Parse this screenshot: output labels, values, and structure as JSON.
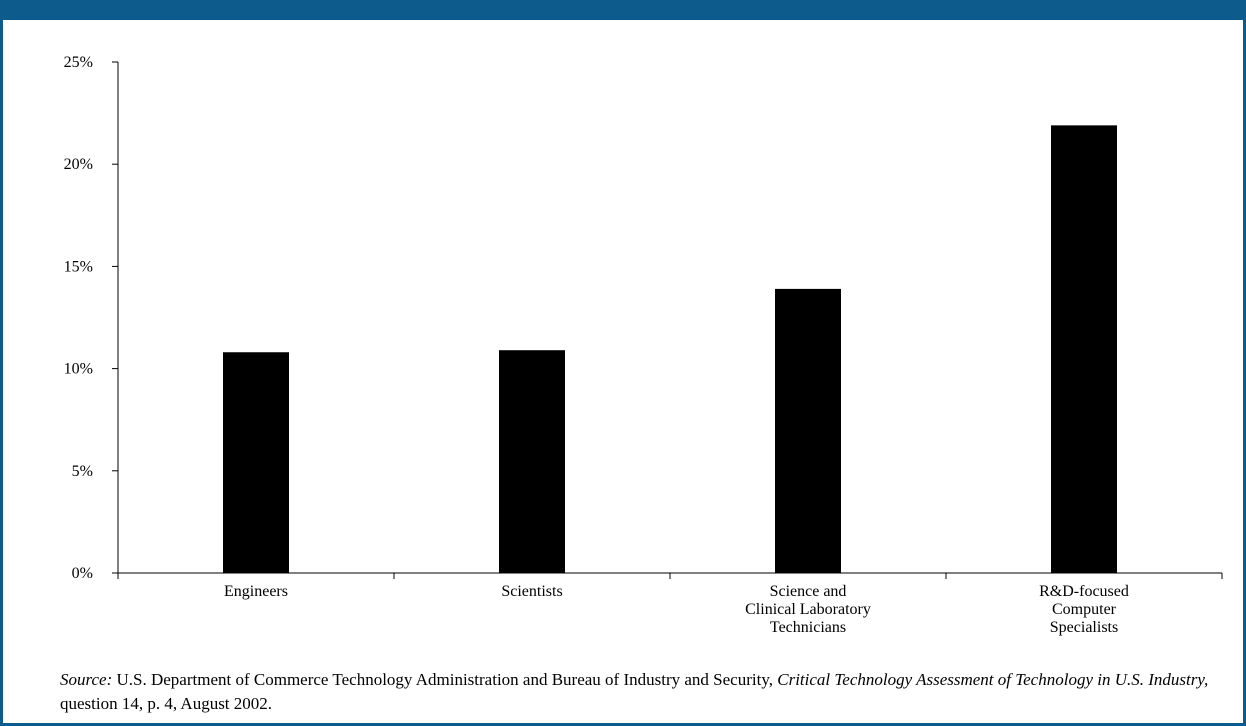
{
  "chart_data": {
    "type": "bar",
    "categories": [
      [
        "Engineers"
      ],
      [
        "Scientists"
      ],
      [
        "Science and",
        "Clinical Laboratory",
        "Technicians"
      ],
      [
        "R&D-focused",
        "Computer",
        "Specialists"
      ]
    ],
    "values": [
      10.8,
      10.9,
      13.9,
      21.9
    ],
    "ylim": [
      0,
      25
    ],
    "yticks": [
      "0%",
      "5%",
      "10%",
      "15%",
      "20%",
      "25%"
    ],
    "ytick_values": [
      0,
      5,
      10,
      15,
      20,
      25
    ],
    "title": "",
    "xlabel": "",
    "ylabel": "",
    "grid": false,
    "bar_color": "#000000"
  },
  "source": {
    "label": "Source:",
    "text_1": " U.S. Department of Commerce Technology Administration and Bureau of Industry and Security, ",
    "title": "Critical Technology Assessment of Technology in U.S. Industry,",
    "text_2": " question 14, p. 4, August 2002."
  },
  "colors": {
    "frame": "#0d5a8c",
    "bars": "#000000"
  }
}
